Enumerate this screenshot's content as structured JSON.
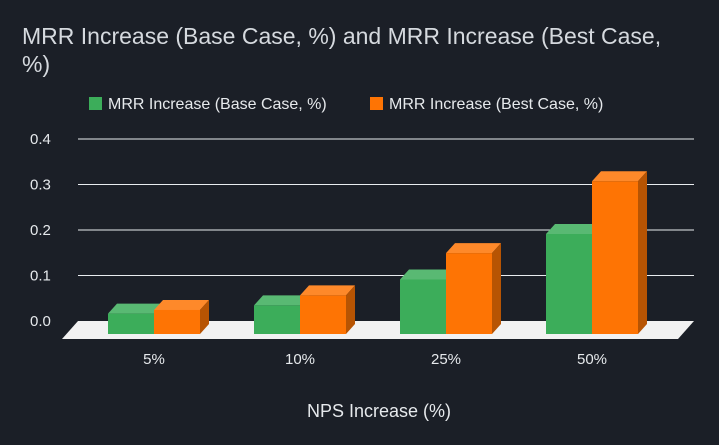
{
  "chart_data": {
    "type": "bar",
    "title_lines": [
      "MRR Increase (Base Case, %) and MRR Increase (Best Case,",
      "%)"
    ],
    "xlabel": "NPS Increase (%)",
    "ylabel": "",
    "categories": [
      "5%",
      "10%",
      "25%",
      "50%"
    ],
    "series": [
      {
        "name": "MRR Increase (Base Case, %)",
        "values": [
          0.025,
          0.043,
          0.1,
          0.2
        ],
        "color": "#3cad5a"
      },
      {
        "name": "MRR Increase (Best Case, %)",
        "values": [
          0.033,
          0.065,
          0.158,
          0.316
        ],
        "color": "#fe7404"
      }
    ],
    "yticks": [
      "0.0",
      "0.1",
      "0.2",
      "0.3",
      "0.4"
    ],
    "ylim": [
      0,
      0.4
    ],
    "grid": true,
    "legend_position": "top",
    "style": "3d-column"
  }
}
